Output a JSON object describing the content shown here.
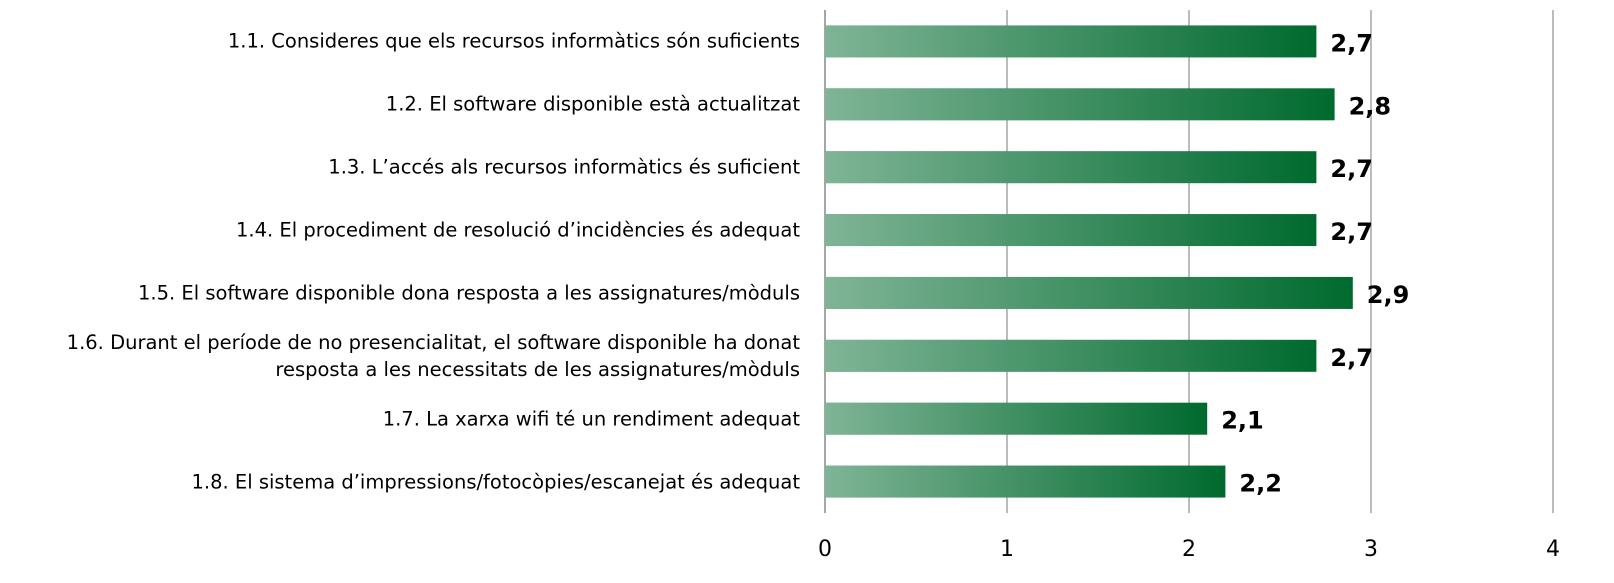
{
  "chart_data": {
    "type": "barh",
    "categories": [
      "1.1. Consideres que els recursos informàtics són suficients",
      "1.2. El software disponible està actualitzat",
      "1.3. L’accés als recursos informàtics és suficient",
      "1.4. El procediment de resolució d’incidències és adequat",
      "1.5. El software disponible dona resposta a les assignatures/mòduls",
      "1.6. Durant el període de no presencialitat, el software disponible ha donat resposta a les necessitats de les assignatures/mòduls",
      "1.7. La xarxa wifi té un rendiment adequat",
      "1.8. El sistema d’impressions/fotocòpies/escanejat és adequat"
    ],
    "values": [
      2.7,
      2.8,
      2.7,
      2.7,
      2.9,
      2.7,
      2.1,
      2.2
    ],
    "value_labels": [
      "2,7",
      "2,8",
      "2,7",
      "2,7",
      "2,9",
      "2,7",
      "2,1",
      "2,2"
    ],
    "color": "#006a2e",
    "xlim": [
      0,
      4
    ],
    "xticks": [
      0,
      1,
      2,
      3,
      4
    ],
    "grid": true
  }
}
